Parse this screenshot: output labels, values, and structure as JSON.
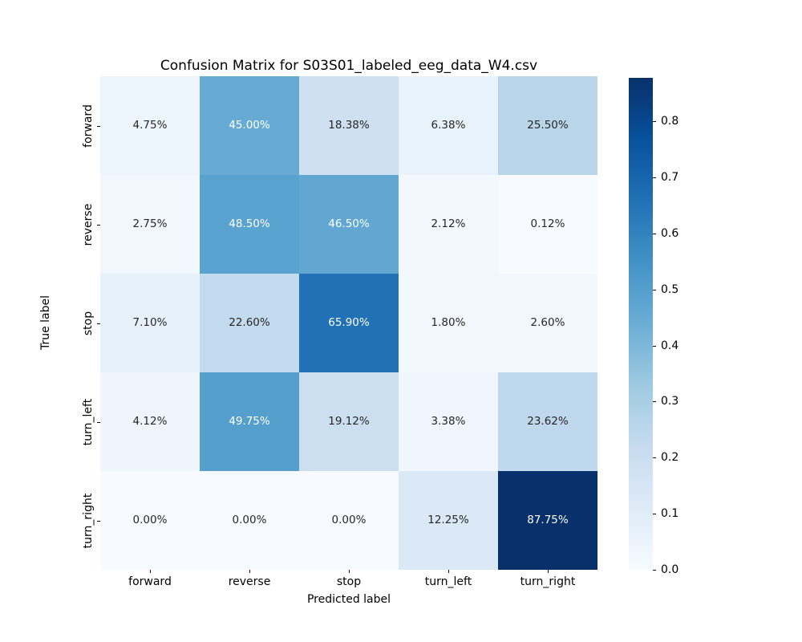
{
  "chart_data": {
    "type": "heatmap",
    "title": "Confusion Matrix for S03S01_labeled_eeg_data_W4.csv",
    "xlabel": "Predicted label",
    "ylabel": "True label",
    "x_categories": [
      "forward",
      "reverse",
      "stop",
      "turn_left",
      "turn_right"
    ],
    "y_categories": [
      "forward",
      "reverse",
      "stop",
      "turn_left",
      "turn_right"
    ],
    "values": [
      [
        0.0475,
        0.45,
        0.1838,
        0.0638,
        0.255
      ],
      [
        0.0275,
        0.485,
        0.465,
        0.0212,
        0.0012
      ],
      [
        0.071,
        0.226,
        0.659,
        0.018,
        0.026
      ],
      [
        0.0412,
        0.4975,
        0.1912,
        0.0338,
        0.2362
      ],
      [
        0.0,
        0.0,
        0.0,
        0.1225,
        0.8775
      ]
    ],
    "cell_labels": [
      [
        "4.75%",
        "45.00%",
        "18.38%",
        "6.38%",
        "25.50%"
      ],
      [
        "2.75%",
        "48.50%",
        "46.50%",
        "2.12%",
        "0.12%"
      ],
      [
        "7.10%",
        "22.60%",
        "65.90%",
        "1.80%",
        "2.60%"
      ],
      [
        "4.12%",
        "49.75%",
        "19.12%",
        "3.38%",
        "23.62%"
      ],
      [
        "0.00%",
        "0.00%",
        "0.00%",
        "12.25%",
        "87.75%"
      ]
    ],
    "colormap": "Blues",
    "colormap_stops": [
      "#f7fbff",
      "#deebf7",
      "#c6dbef",
      "#9ecae1",
      "#6baed6",
      "#4292c6",
      "#2171b5",
      "#08519c",
      "#08306b"
    ],
    "vmin": 0.0,
    "vmax": 0.8775,
    "colorbar_ticks": [
      "0.0",
      "0.1",
      "0.2",
      "0.3",
      "0.4",
      "0.5",
      "0.6",
      "0.7",
      "0.8"
    ],
    "legend_position": "right",
    "grid": false,
    "annot_dark_color": "#262626",
    "annot_light_color": "#ffffff",
    "tick_color": "#000000",
    "background_color": "#ffffff"
  }
}
